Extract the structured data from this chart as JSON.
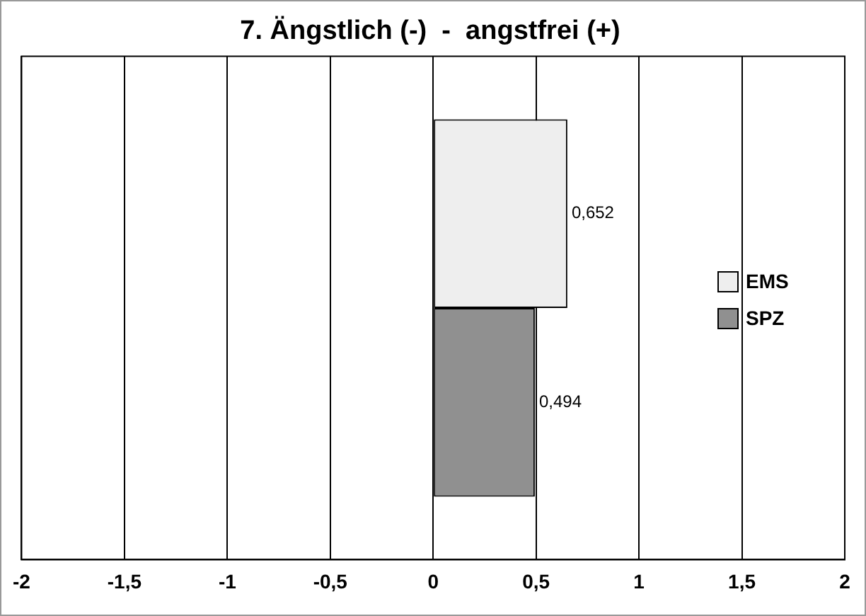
{
  "chart_data": {
    "type": "bar",
    "orientation": "horizontal",
    "title": "7. Ängstlich (-)  -  angstfrei (+)",
    "categories": [
      null
    ],
    "series": [
      {
        "name": "EMS",
        "color": "#eeeeee",
        "values": [
          0.652
        ],
        "value_labels": [
          "0,652"
        ]
      },
      {
        "name": "SPZ",
        "color": "#909090",
        "values": [
          0.494
        ],
        "value_labels": [
          "0,494"
        ]
      }
    ],
    "xlim": [
      -2,
      2
    ],
    "xticks": [
      {
        "value": -2,
        "label": "-2"
      },
      {
        "value": -1.5,
        "label": "-1,5"
      },
      {
        "value": -1,
        "label": "-1"
      },
      {
        "value": -0.5,
        "label": "-0,5"
      },
      {
        "value": 0,
        "label": "0"
      },
      {
        "value": 0.5,
        "label": "0,5"
      },
      {
        "value": 1,
        "label": "1"
      },
      {
        "value": 1.5,
        "label": "1,5"
      },
      {
        "value": 2,
        "label": "2"
      }
    ],
    "grid": "x",
    "legend": "right"
  }
}
